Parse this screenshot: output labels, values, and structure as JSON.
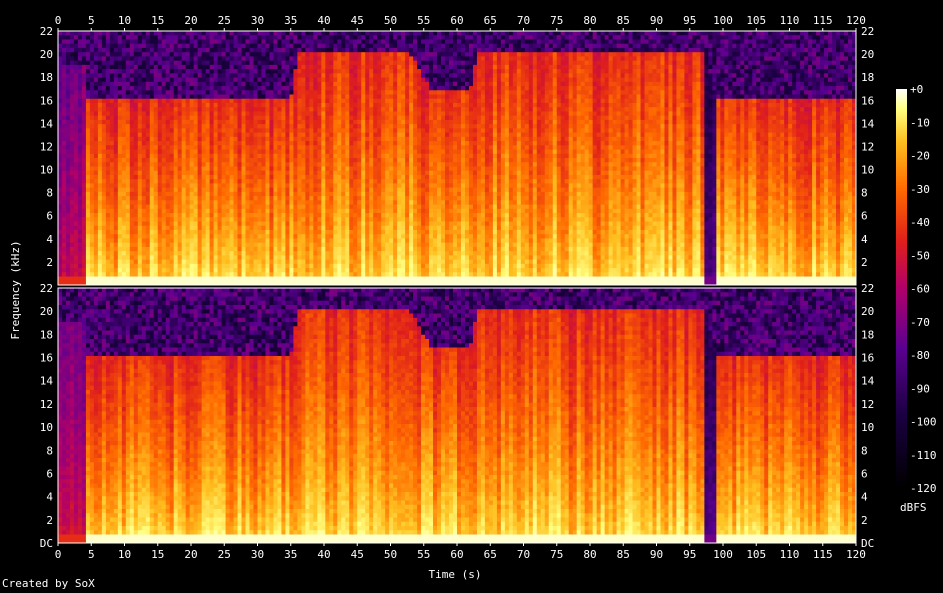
{
  "chart_data": {
    "type": "heatmap",
    "subtype": "spectrogram",
    "xlabel": "Time (s)",
    "ylabel": "Frequency (kHz)",
    "xlim": [
      0,
      120
    ],
    "ylim": [
      0,
      22
    ],
    "x_ticks": [
      "0",
      "5",
      "10",
      "15",
      "20",
      "25",
      "30",
      "35",
      "40",
      "45",
      "50",
      "55",
      "60",
      "65",
      "70",
      "75",
      "80",
      "85",
      "90",
      "95",
      "100",
      "105",
      "110",
      "115",
      "120"
    ],
    "y_ticks": [
      "DC",
      "2",
      "4",
      "6",
      "8",
      "10",
      "12",
      "14",
      "16",
      "18",
      "20",
      "22"
    ],
    "colorbar": {
      "label": "dBFS",
      "ticks": [
        "+0",
        "-10",
        "-20",
        "-30",
        "-40",
        "-50",
        "-60",
        "-70",
        "-80",
        "-90",
        "-100",
        "-110",
        "-120"
      ],
      "range": [
        -120,
        0
      ]
    },
    "channels": 2,
    "energy_profile": {
      "time_s": [
        0,
        4,
        4.5,
        35,
        36,
        53,
        56,
        62,
        63,
        80,
        88,
        97.5,
        99,
        120
      ],
      "upper_cutoff_khz": [
        19,
        19,
        16,
        16,
        20,
        20,
        17,
        17,
        20,
        20,
        20,
        20,
        16,
        16
      ],
      "note": "loud content below ~6 kHz throughout; near-silent dip around 97–99 s"
    }
  },
  "footer": {
    "credit": "Created by SoX"
  },
  "colors": {
    "background": "#000000",
    "low": "#000000",
    "mid_low": "#5a0090",
    "mid": "#e0201a",
    "mid_high": "#ff9a00",
    "high": "#ffffff"
  }
}
